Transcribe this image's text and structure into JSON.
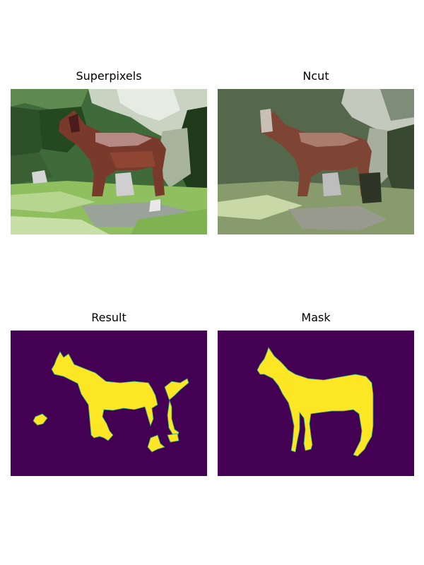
{
  "panels": [
    {
      "title": "Superpixels"
    },
    {
      "title": "Ncut"
    },
    {
      "title": "Result"
    },
    {
      "title": "Mask"
    }
  ],
  "colors": {
    "mask_background": "#440154",
    "mask_foreground": "#fde725",
    "mask_edge": "#20a386"
  }
}
